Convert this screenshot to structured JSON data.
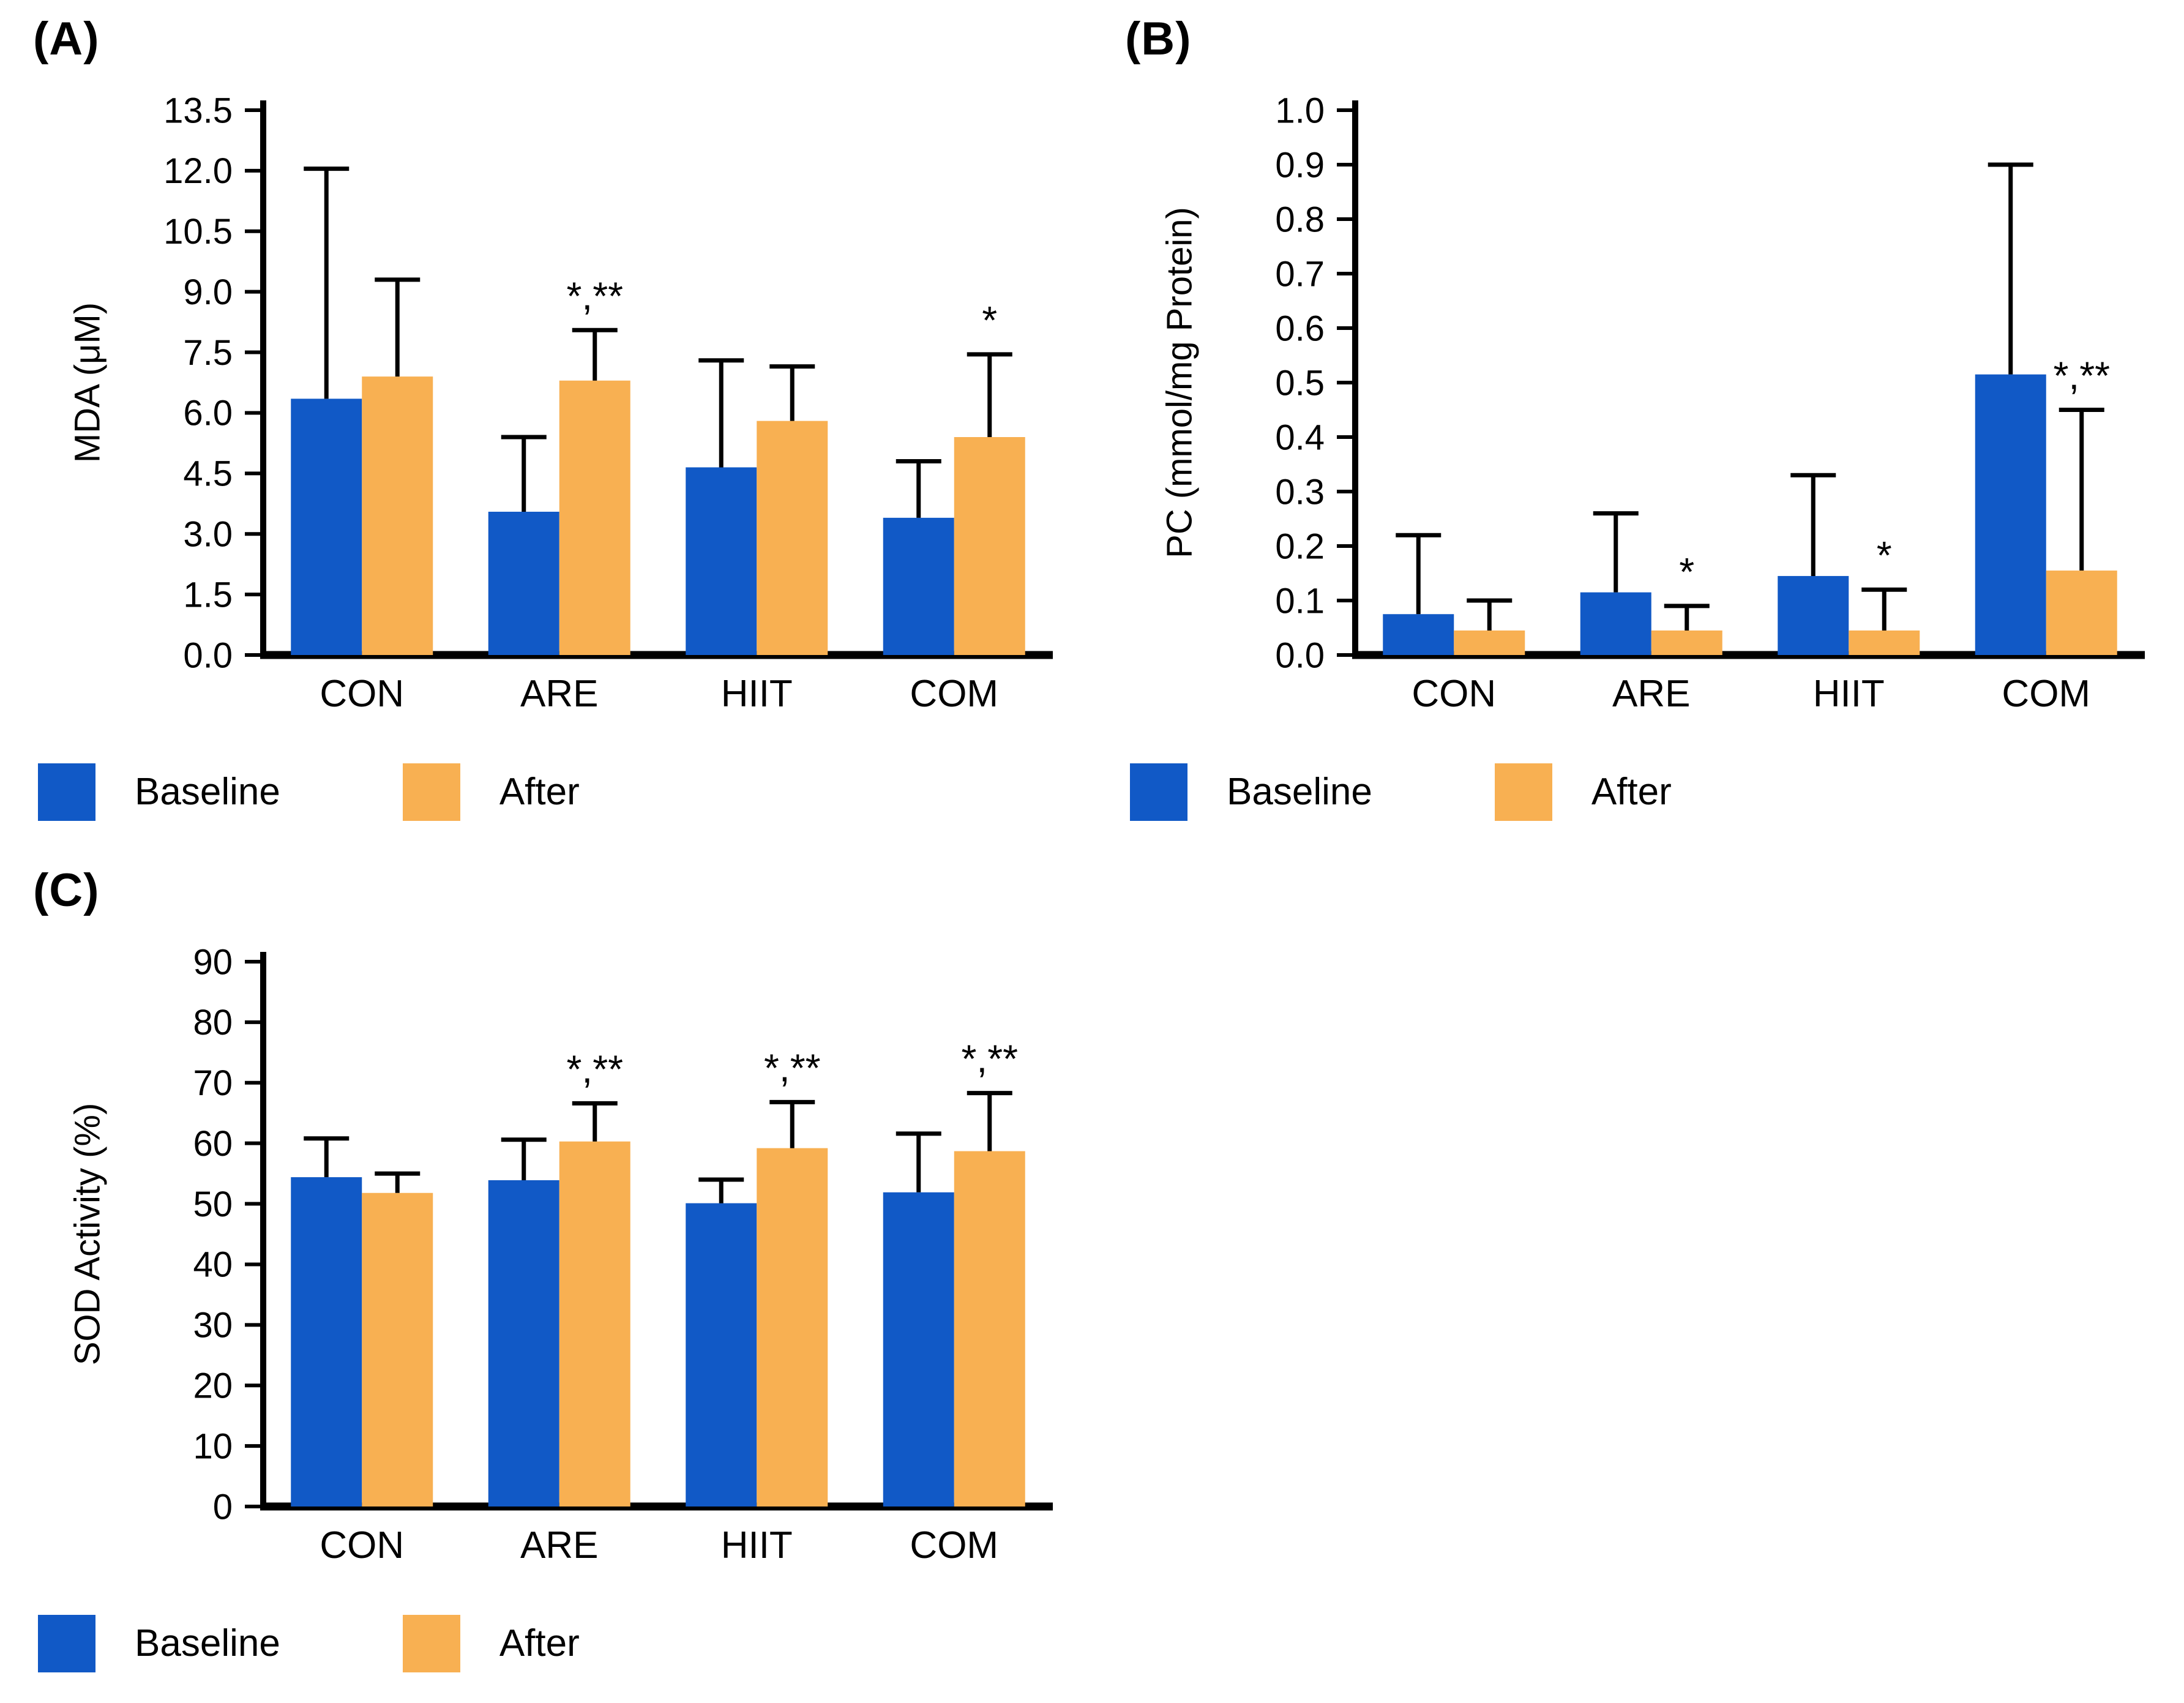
{
  "page": {
    "background": "#ffffff"
  },
  "colors": {
    "baseline": "#1159C6",
    "after": "#F8B052",
    "axis": "#000000"
  },
  "chart_data": [
    {
      "name": "mda-chart",
      "panel_label": "(A)",
      "type": "bar",
      "title": "",
      "xlabel": "",
      "ylabel": "MDA (μM)",
      "categories": [
        "CON",
        "ARE",
        "HIIT",
        "COM"
      ],
      "ylim": [
        0,
        13.5
      ],
      "ytick_step": 1.5,
      "ytick_decimals": 1,
      "grid": false,
      "error_bars": "upper",
      "legend_position": "bottom-left",
      "series": [
        {
          "name": "Baseline",
          "color": "#1159C6",
          "values": [
            6.35,
            3.55,
            4.65,
            3.4
          ],
          "errors": [
            5.7,
            1.85,
            2.65,
            1.4
          ]
        },
        {
          "name": "After",
          "color": "#F8B052",
          "values": [
            6.9,
            6.8,
            5.8,
            5.4
          ],
          "errors": [
            2.4,
            1.25,
            1.35,
            2.05
          ]
        }
      ],
      "annotations": [
        {
          "category": "ARE",
          "series": "After",
          "text": "*,**"
        },
        {
          "category": "COM",
          "series": "After",
          "text": "*"
        }
      ]
    },
    {
      "name": "pc-chart",
      "panel_label": "(B)",
      "type": "bar",
      "title": "",
      "xlabel": "",
      "ylabel": "PC (mmol/mg Protein)",
      "categories": [
        "CON",
        "ARE",
        "HIIT",
        "COM"
      ],
      "ylim": [
        0,
        1.0
      ],
      "ytick_step": 0.1,
      "ytick_decimals": 1,
      "grid": false,
      "error_bars": "upper",
      "legend_position": "bottom-left",
      "series": [
        {
          "name": "Baseline",
          "color": "#1159C6",
          "values": [
            0.075,
            0.115,
            0.145,
            0.515
          ],
          "errors": [
            0.145,
            0.145,
            0.185,
            0.385
          ]
        },
        {
          "name": "After",
          "color": "#F8B052",
          "values": [
            0.045,
            0.045,
            0.045,
            0.155
          ],
          "errors": [
            0.055,
            0.045,
            0.075,
            0.295
          ]
        }
      ],
      "annotations": [
        {
          "category": "ARE",
          "series": "After",
          "text": "*"
        },
        {
          "category": "HIIT",
          "series": "After",
          "text": "*"
        },
        {
          "category": "COM",
          "series": "After",
          "text": "*,**"
        }
      ]
    },
    {
      "name": "sod-chart",
      "panel_label": "(C)",
      "type": "bar",
      "title": "",
      "xlabel": "",
      "ylabel": "SOD Activity (%)",
      "categories": [
        "CON",
        "ARE",
        "HIIT",
        "COM"
      ],
      "ylim": [
        0,
        90
      ],
      "ytick_step": 10,
      "ytick_decimals": 0,
      "grid": false,
      "error_bars": "upper",
      "legend_position": "bottom-left",
      "series": [
        {
          "name": "Baseline",
          "color": "#1159C6",
          "values": [
            54.4,
            53.9,
            50.1,
            51.9
          ],
          "errors": [
            6.4,
            6.7,
            3.9,
            9.7
          ]
        },
        {
          "name": "After",
          "color": "#F8B052",
          "values": [
            51.8,
            60.3,
            59.2,
            58.7
          ],
          "errors": [
            3.2,
            6.3,
            7.6,
            9.6
          ]
        }
      ],
      "annotations": [
        {
          "category": "ARE",
          "series": "After",
          "text": "*,**"
        },
        {
          "category": "HIIT",
          "series": "After",
          "text": "*,**"
        },
        {
          "category": "COM",
          "series": "After",
          "text": "*,**"
        }
      ]
    }
  ]
}
